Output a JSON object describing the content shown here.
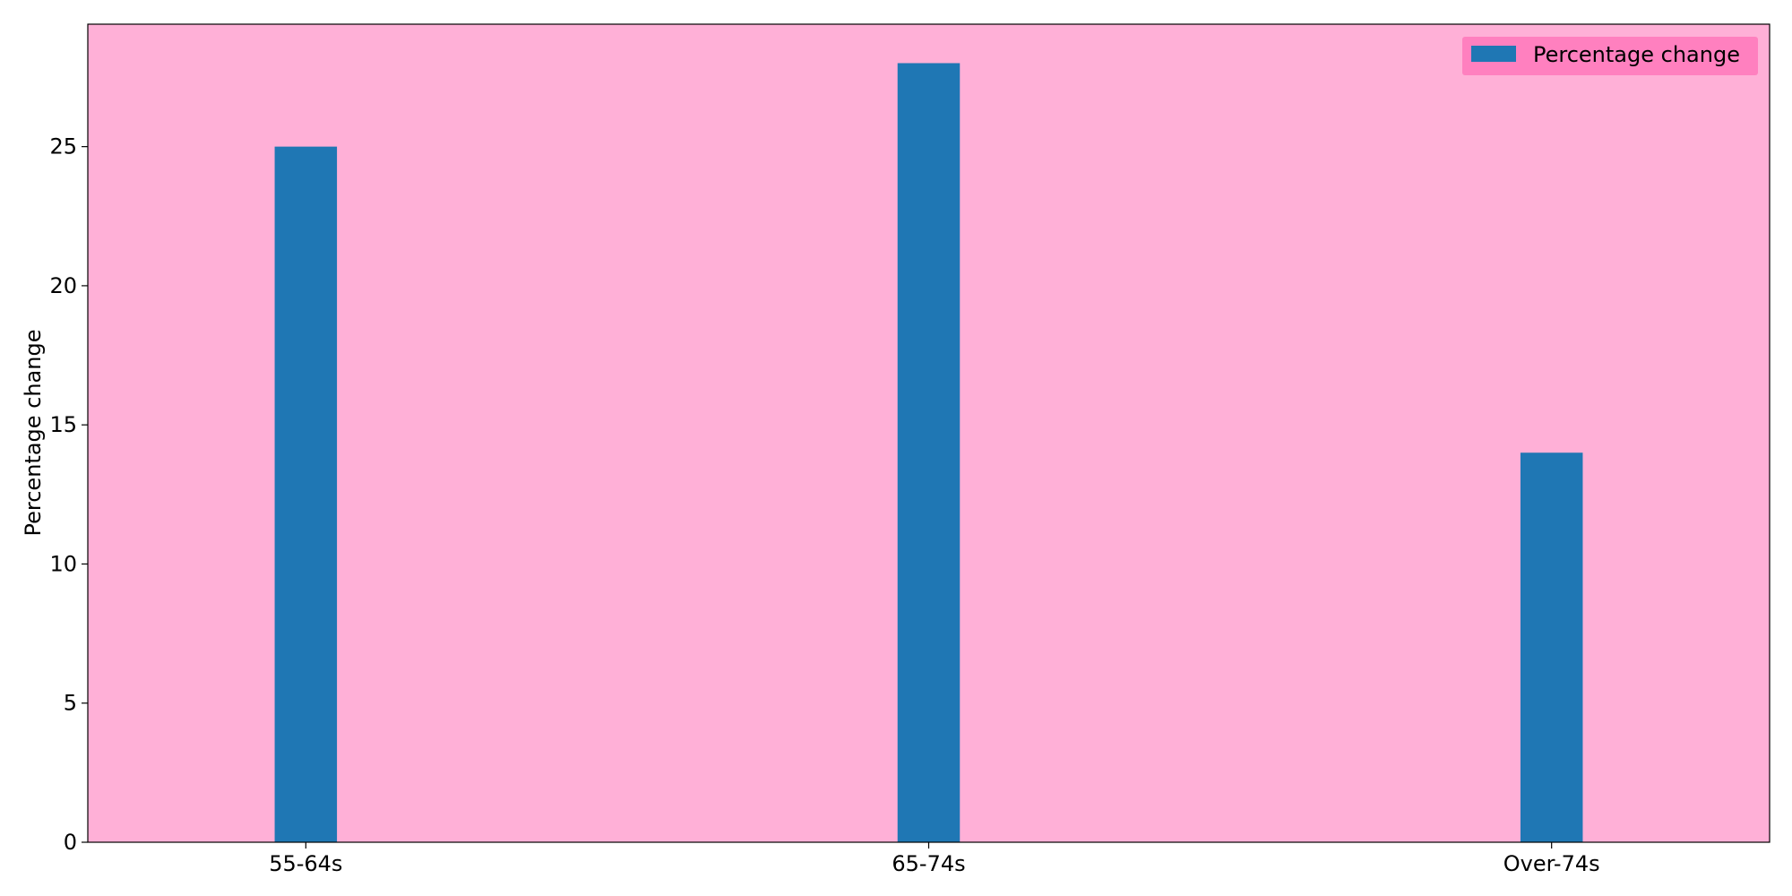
{
  "chart_data": {
    "type": "bar",
    "categories": [
      "55-64s",
      "65-74s",
      "Over-74s"
    ],
    "series": [
      {
        "name": "Percentage change",
        "values": [
          25,
          28,
          14
        ]
      }
    ],
    "title": "",
    "xlabel": "",
    "ylabel": "Percentage change",
    "ylim": [
      0,
      29.4
    ],
    "yticks": [
      0,
      5,
      10,
      15,
      20,
      25
    ],
    "grid": false,
    "legend": {
      "position": "top-right",
      "entries": [
        "Percentage change"
      ]
    },
    "colors": {
      "bar": "#1f77b4",
      "plot_background": "#ffb0d7",
      "legend_background": "#ff80bf"
    }
  }
}
